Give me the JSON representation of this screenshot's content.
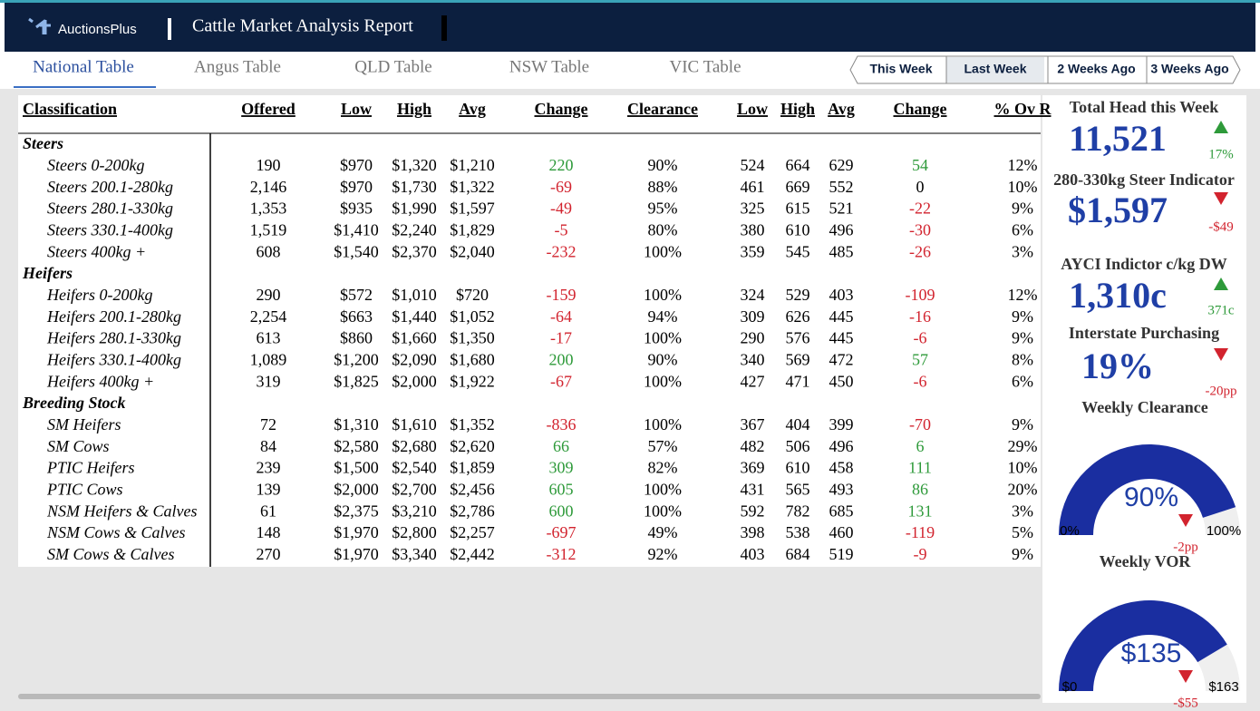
{
  "header": {
    "logo": "AuctionsPlus",
    "title": "Cattle Market Analysis Report"
  },
  "tabs": {
    "items": [
      "National Table",
      "Angus Table",
      "QLD Table",
      "NSW Table",
      "VIC Table"
    ],
    "active": 0
  },
  "week_buttons": {
    "items": [
      "This Week",
      "Last Week",
      "2 Weeks Ago",
      "3 Weeks Ago"
    ],
    "active": 1
  },
  "table": {
    "columns": [
      "Classification",
      "Offered",
      "Low",
      "High",
      "Avg",
      "Change",
      "Clearance",
      "Low",
      "High",
      "Avg",
      "Change",
      "% Ov R"
    ],
    "groups": [
      {
        "name": "Steers",
        "rows": [
          [
            "Steers 0-200kg",
            "190",
            "$970",
            "$1,320",
            "$1,210",
            "220",
            "90%",
            "524",
            "664",
            "629",
            "54",
            "12%"
          ],
          [
            "Steers 200.1-280kg",
            "2,146",
            "$970",
            "$1,730",
            "$1,322",
            "-69",
            "88%",
            "461",
            "669",
            "552",
            "0",
            "10%"
          ],
          [
            "Steers 280.1-330kg",
            "1,353",
            "$935",
            "$1,990",
            "$1,597",
            "-49",
            "95%",
            "325",
            "615",
            "521",
            "-22",
            "9%"
          ],
          [
            "Steers 330.1-400kg",
            "1,519",
            "$1,410",
            "$2,240",
            "$1,829",
            "-5",
            "80%",
            "380",
            "610",
            "496",
            "-30",
            "6%"
          ],
          [
            "Steers 400kg +",
            "608",
            "$1,540",
            "$2,370",
            "$2,040",
            "-232",
            "100%",
            "359",
            "545",
            "485",
            "-26",
            "3%"
          ]
        ]
      },
      {
        "name": "Heifers",
        "rows": [
          [
            "Heifers 0-200kg",
            "290",
            "$572",
            "$1,010",
            "$720",
            "-159",
            "100%",
            "324",
            "529",
            "403",
            "-109",
            "12%"
          ],
          [
            "Heifers 200.1-280kg",
            "2,254",
            "$663",
            "$1,440",
            "$1,052",
            "-64",
            "94%",
            "309",
            "626",
            "445",
            "-16",
            "9%"
          ],
          [
            "Heifers 280.1-330kg",
            "613",
            "$860",
            "$1,660",
            "$1,350",
            "-17",
            "100%",
            "290",
            "576",
            "445",
            "-6",
            "9%"
          ],
          [
            "Heifers 330.1-400kg",
            "1,089",
            "$1,200",
            "$2,090",
            "$1,680",
            "200",
            "90%",
            "340",
            "569",
            "472",
            "57",
            "8%"
          ],
          [
            "Heifers 400kg +",
            "319",
            "$1,825",
            "$2,000",
            "$1,922",
            "-67",
            "100%",
            "427",
            "471",
            "450",
            "-6",
            "6%"
          ]
        ]
      },
      {
        "name": "Breeding Stock",
        "rows": [
          [
            "SM Heifers",
            "72",
            "$1,310",
            "$1,610",
            "$1,352",
            "-836",
            "100%",
            "367",
            "404",
            "399",
            "-70",
            "9%"
          ],
          [
            "SM Cows",
            "84",
            "$2,580",
            "$2,680",
            "$2,620",
            "66",
            "57%",
            "482",
            "506",
            "496",
            "6",
            "29%"
          ],
          [
            "PTIC Heifers",
            "239",
            "$1,500",
            "$2,540",
            "$1,859",
            "309",
            "82%",
            "369",
            "610",
            "458",
            "111",
            "10%"
          ],
          [
            "PTIC Cows",
            "139",
            "$2,000",
            "$2,700",
            "$2,456",
            "605",
            "100%",
            "431",
            "565",
            "493",
            "86",
            "20%"
          ],
          [
            "NSM Heifers & Calves",
            "61",
            "$2,375",
            "$3,210",
            "$2,786",
            "600",
            "100%",
            "592",
            "782",
            "685",
            "131",
            "3%"
          ],
          [
            "NSM Cows & Calves",
            "148",
            "$1,970",
            "$2,800",
            "$2,257",
            "-697",
            "49%",
            "398",
            "538",
            "460",
            "-119",
            "5%"
          ],
          [
            "SM Cows & Calves",
            "270",
            "$1,970",
            "$3,340",
            "$2,442",
            "-312",
            "92%",
            "403",
            "684",
            "519",
            "-9",
            "9%"
          ]
        ]
      }
    ]
  },
  "kpis": [
    {
      "title": "Total Head this Week",
      "value": "11,521",
      "delta": "17%",
      "direction": "up"
    },
    {
      "title": "280-330kg Steer Indicator",
      "value": "$1,597",
      "delta": "-$49",
      "direction": "down"
    },
    {
      "title": "AYCI Indictor c/kg DW",
      "value": "1,310c",
      "delta": "371c",
      "direction": "up"
    },
    {
      "title": "Interstate Purchasing",
      "value": "19%",
      "delta": "-20pp",
      "direction": "down"
    }
  ],
  "gauges": [
    {
      "title": "Weekly Clearance",
      "value": {
        "value": 90,
        "label": "90%"
      },
      "min": {
        "value": 0,
        "label": "0%"
      },
      "max": {
        "value": 100,
        "label": "100%"
      },
      "delta": "-2pp",
      "direction": "down",
      "color": "#1a2ea0"
    },
    {
      "title": "Weekly VOR",
      "value": {
        "value": 135,
        "label": "$135"
      },
      "min": {
        "value": 0,
        "label": "$0"
      },
      "max": {
        "value": 163,
        "label": "$163"
      },
      "delta": "-$55",
      "direction": "down",
      "color": "#1a2ea0"
    }
  ]
}
